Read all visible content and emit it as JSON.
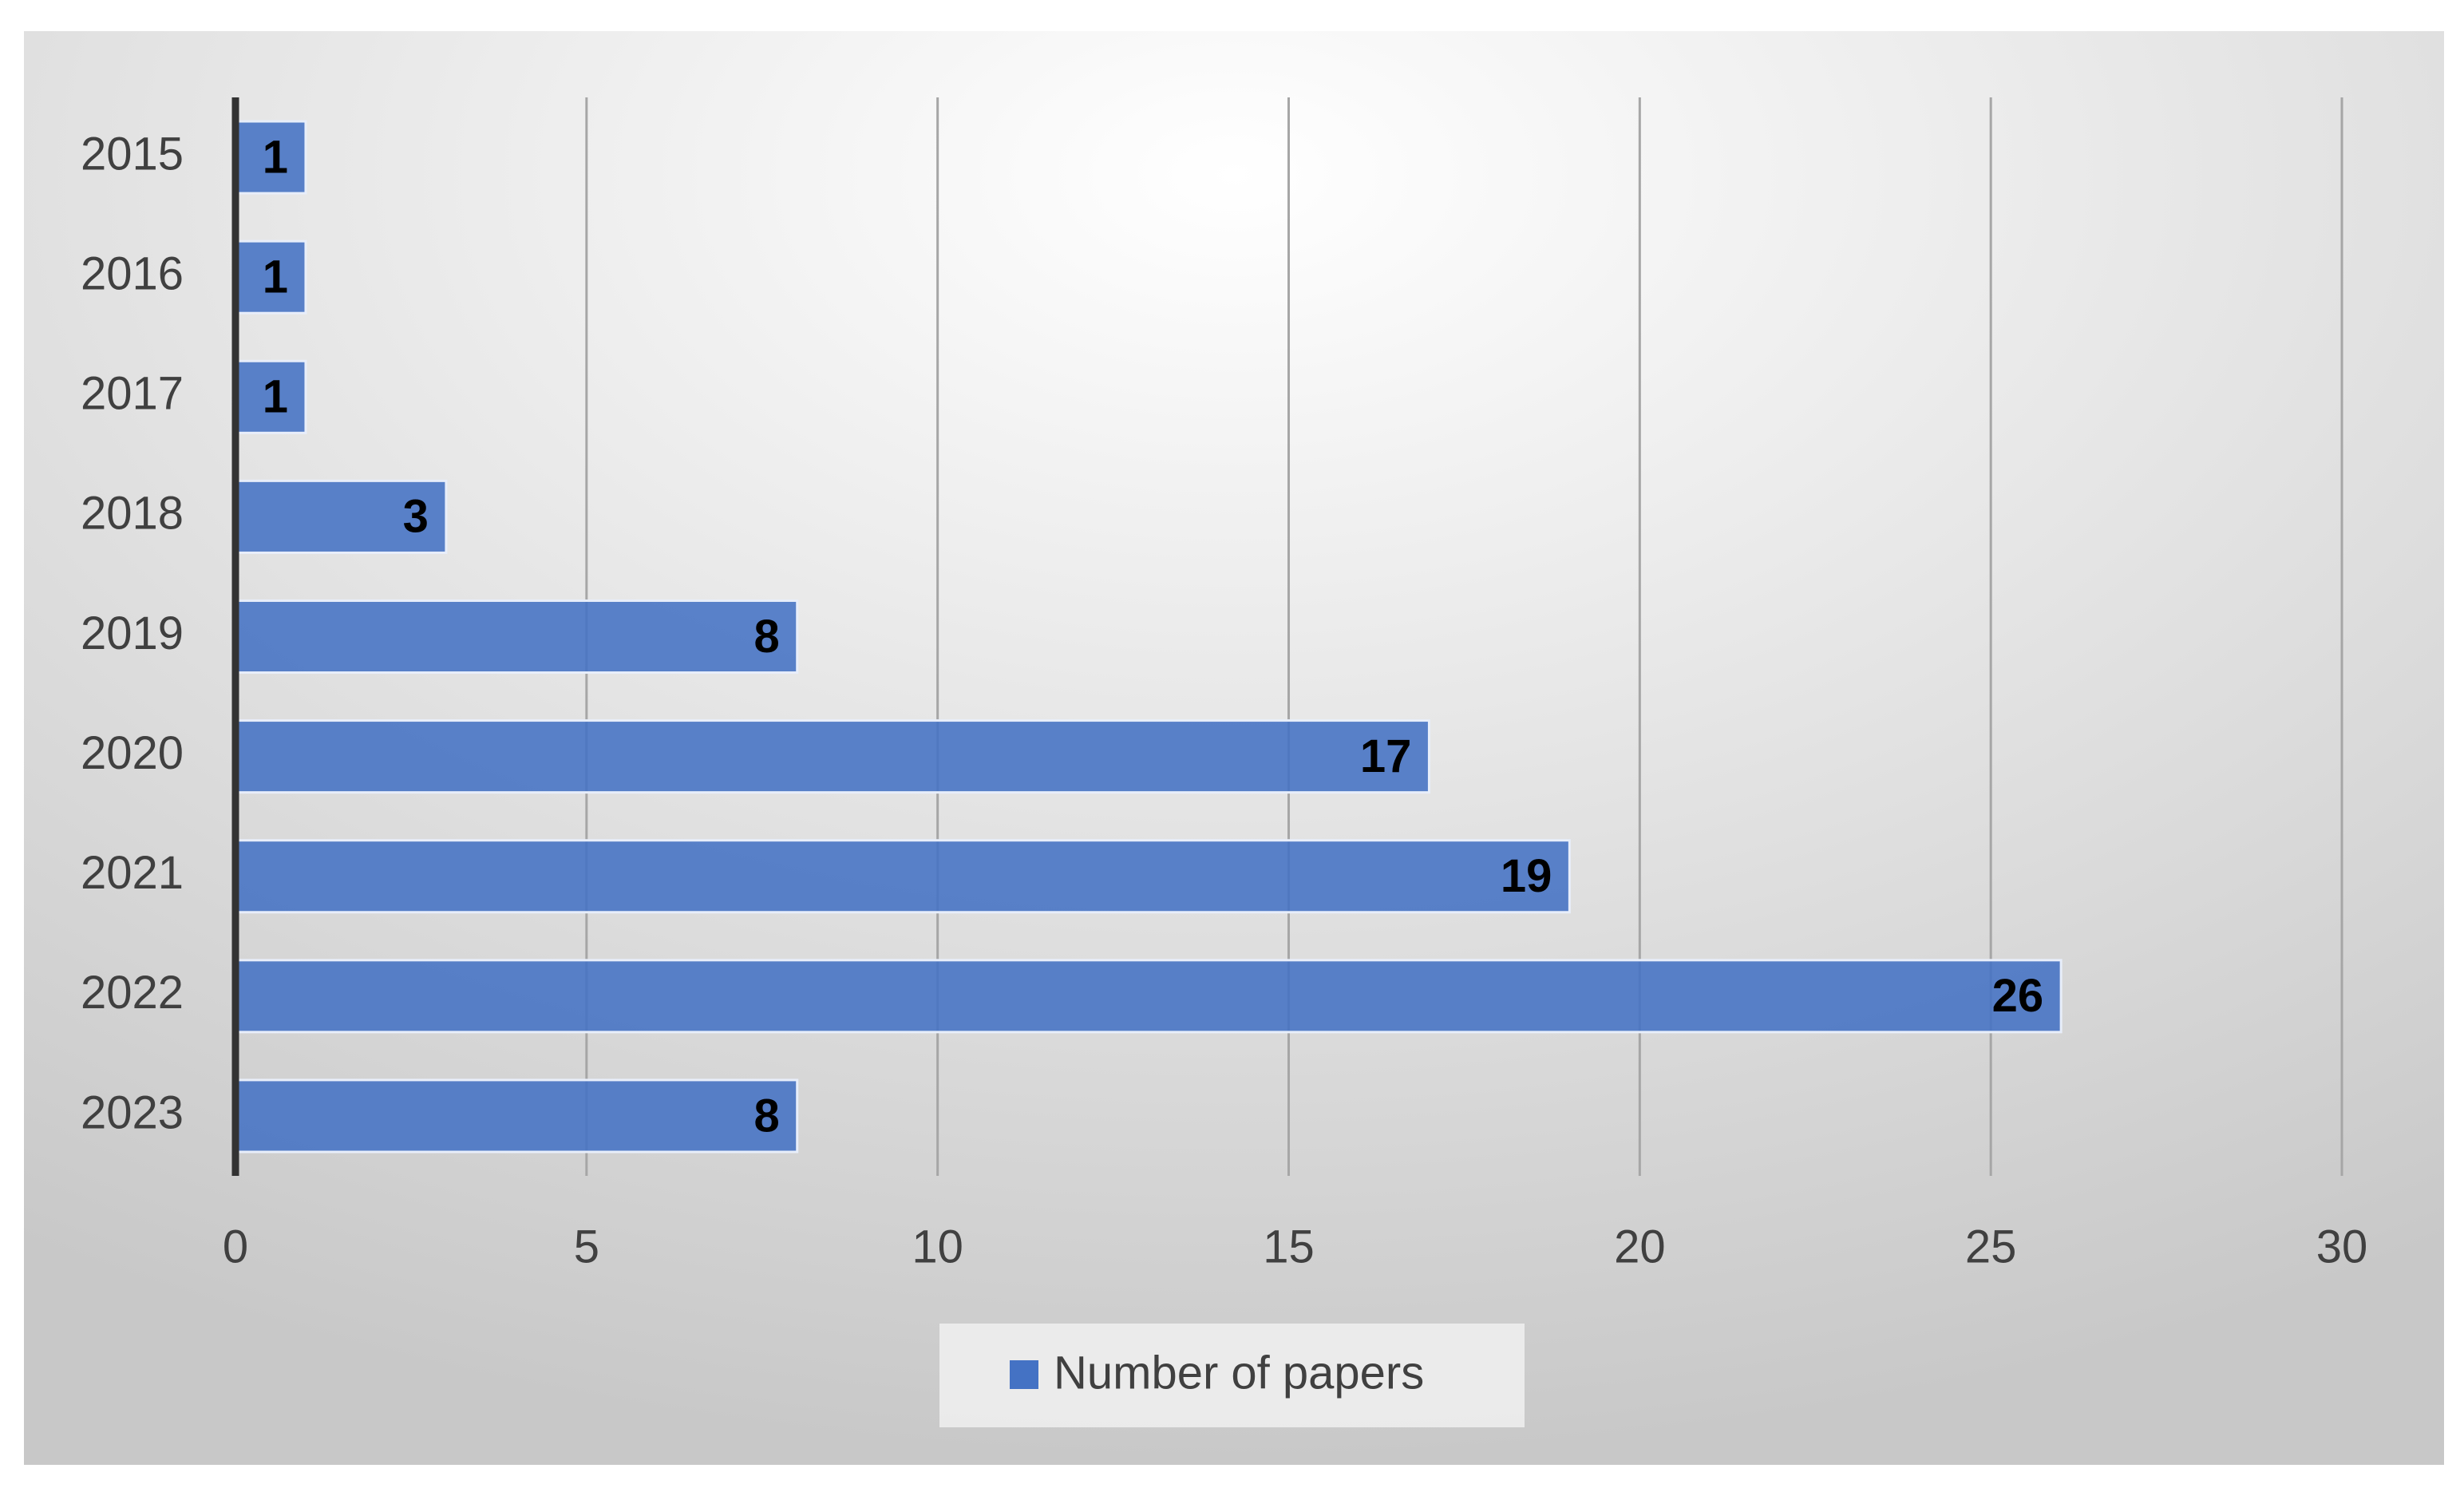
{
  "chart_data": {
    "type": "bar",
    "orientation": "horizontal",
    "categories": [
      "2015",
      "2016",
      "2017",
      "2018",
      "2019",
      "2020",
      "2021",
      "2022",
      "2023"
    ],
    "series": [
      {
        "name": "Number of papers",
        "color": "#4472c4",
        "values": [
          1,
          1,
          1,
          3,
          8,
          17,
          19,
          26,
          8
        ]
      }
    ],
    "xlim": [
      0,
      30
    ],
    "xticks": [
      0,
      5,
      10,
      15,
      20,
      25,
      30
    ],
    "grid": true,
    "legend": "bottom"
  }
}
